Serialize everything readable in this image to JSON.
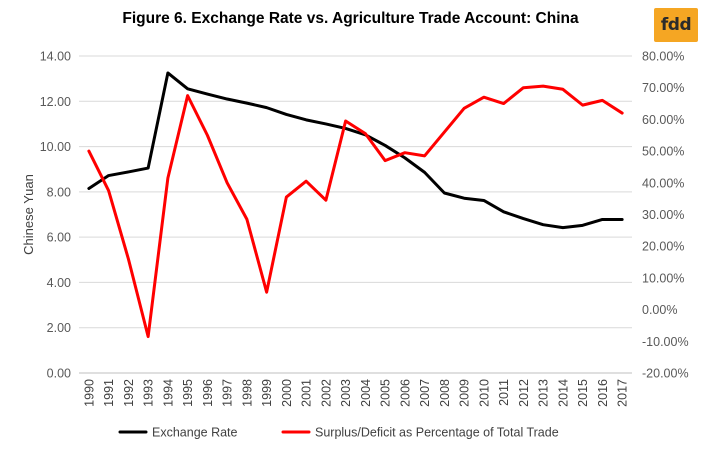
{
  "logo_text": "fdd",
  "chart_data": {
    "type": "line",
    "title": "Figure 6. Exchange Rate vs. Agriculture  Trade Account: China",
    "xlabel": "",
    "ylabel": "Chinese Yuan",
    "y2label": "",
    "categories": [
      "1990",
      "1991",
      "1992",
      "1993",
      "1994",
      "1995",
      "1996",
      "1997",
      "1998",
      "1999",
      "2000",
      "2001",
      "2002",
      "2003",
      "2004",
      "2005",
      "2006",
      "2007",
      "2008",
      "2009",
      "2010",
      "2011",
      "2012",
      "2013",
      "2014",
      "2015",
      "2016",
      "2017"
    ],
    "ylim": [
      0,
      14
    ],
    "y_ticks": [
      "0.00",
      "2.00",
      "4.00",
      "6.00",
      "8.00",
      "10.00",
      "12.00",
      "14.00"
    ],
    "y2lim": [
      -20,
      80
    ],
    "y2_ticks": [
      "-20.00%",
      "-10.00%",
      "0.00%",
      "10.00%",
      "20.00%",
      "30.00%",
      "40.00%",
      "50.00%",
      "60.00%",
      "70.00%",
      "80.00%"
    ],
    "grid": true,
    "legend_position": "bottom",
    "series": [
      {
        "name": "Exchange Rate",
        "axis": "left",
        "color": "#000000",
        "values": [
          8.15,
          8.72,
          8.88,
          9.05,
          13.25,
          12.55,
          12.32,
          12.1,
          11.92,
          11.72,
          11.42,
          11.18,
          11.0,
          10.8,
          10.52,
          10.05,
          9.5,
          8.86,
          7.95,
          7.72,
          7.62,
          7.12,
          6.82,
          6.55,
          6.42,
          6.52,
          6.78,
          6.78
        ]
      },
      {
        "name": "Surplus/Deficit as Percentage of Total Trade",
        "axis": "right",
        "color": "#ff0000",
        "values": [
          50.0,
          37.5,
          16.0,
          -8.5,
          41.5,
          67.5,
          55.0,
          40.0,
          28.5,
          5.5,
          35.5,
          40.5,
          34.5,
          59.5,
          55.5,
          47.0,
          49.5,
          48.5,
          56.0,
          63.5,
          67.0,
          65.0,
          70.0,
          70.5,
          69.5,
          64.5,
          66.0,
          62.0
        ]
      }
    ]
  }
}
